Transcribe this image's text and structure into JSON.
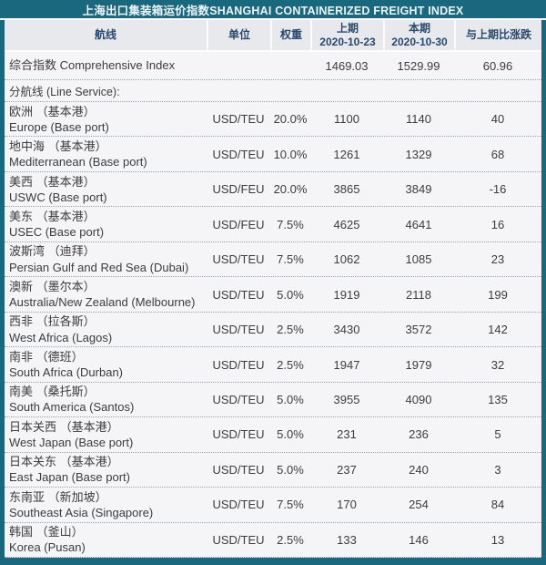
{
  "title": "上海出口集装箱运价指数SHANGHAI CONTAINERIZED FREIGHT INDEX",
  "colors": {
    "teal_frame": "#19687d",
    "header_bg": "#e8e9ed",
    "header_text": "#27496d",
    "body_bg": "#f5f5f7",
    "body_text": "#3c3c3c"
  },
  "table": {
    "columns": {
      "route": "航线",
      "unit": "单位",
      "weight": "权重",
      "prev_label": "上期",
      "prev_date": "2020-10-23",
      "curr_label": "本期",
      "curr_date": "2020-10-30",
      "change": "与上期比涨跌"
    },
    "rows": [
      {
        "type": "single",
        "name": "综合指数 Comprehensive Index",
        "unit": "",
        "weight": "",
        "prev": "1469.03",
        "curr": "1529.99",
        "change": "60.96"
      },
      {
        "type": "section",
        "label": "分航线 (Line Service):"
      },
      {
        "type": "route",
        "zh": "欧洲 （基本港）",
        "en": "Europe (Base port)",
        "unit": "USD/TEU",
        "weight": "20.0%",
        "prev": "1100",
        "curr": "1140",
        "change": "40"
      },
      {
        "type": "route",
        "zh": "地中海 （基本港）",
        "en": "Mediterranean (Base port)",
        "unit": "USD/TEU",
        "weight": "10.0%",
        "prev": "1261",
        "curr": "1329",
        "change": "68"
      },
      {
        "type": "route",
        "zh": "美西 （基本港）",
        "en": "USWC (Base port)",
        "unit": "USD/FEU",
        "weight": "20.0%",
        "prev": "3865",
        "curr": "3849",
        "change": "-16"
      },
      {
        "type": "route",
        "zh": "美东 （基本港）",
        "en": "USEC (Base port)",
        "unit": "USD/FEU",
        "weight": "7.5%",
        "prev": "4625",
        "curr": "4641",
        "change": "16"
      },
      {
        "type": "route",
        "zh": "波斯湾 （迪拜）",
        "en": "Persian Gulf and Red Sea (Dubai)",
        "unit": "USD/TEU",
        "weight": "7.5%",
        "prev": "1062",
        "curr": "1085",
        "change": "23"
      },
      {
        "type": "route",
        "zh": "澳新 （墨尔本）",
        "en": "Australia/New Zealand (Melbourne)",
        "unit": "USD/TEU",
        "weight": "5.0%",
        "prev": "1919",
        "curr": "2118",
        "change": "199"
      },
      {
        "type": "route",
        "zh": "西非 （拉各斯）",
        "en": "West Africa (Lagos)",
        "unit": "USD/TEU",
        "weight": "2.5%",
        "prev": "3430",
        "curr": "3572",
        "change": "142"
      },
      {
        "type": "route",
        "zh": "南非 （德班）",
        "en": "South Africa (Durban)",
        "unit": "USD/TEU",
        "weight": "2.5%",
        "prev": "1947",
        "curr": "1979",
        "change": "32"
      },
      {
        "type": "route",
        "zh": "南美 （桑托斯）",
        "en": "South America (Santos)",
        "unit": "USD/TEU",
        "weight": "5.0%",
        "prev": "3955",
        "curr": "4090",
        "change": "135"
      },
      {
        "type": "route",
        "zh": "日本关西 （基本港）",
        "en": "West Japan (Base port)",
        "unit": "USD/TEU",
        "weight": "5.0%",
        "prev": "231",
        "curr": "236",
        "change": "5"
      },
      {
        "type": "route",
        "zh": "日本关东 （基本港）",
        "en": "East Japan (Base port)",
        "unit": "USD/TEU",
        "weight": "5.0%",
        "prev": "237",
        "curr": "240",
        "change": "3"
      },
      {
        "type": "route",
        "zh": "东南亚 （新加坡）",
        "en": "Southeast Asia (Singapore)",
        "unit": "USD/TEU",
        "weight": "7.5%",
        "prev": "170",
        "curr": "254",
        "change": "84"
      },
      {
        "type": "route",
        "zh": "韩国 （釜山）",
        "en": "Korea (Pusan)",
        "unit": "USD/TEU",
        "weight": "2.5%",
        "prev": "133",
        "curr": "146",
        "change": "13"
      }
    ]
  }
}
